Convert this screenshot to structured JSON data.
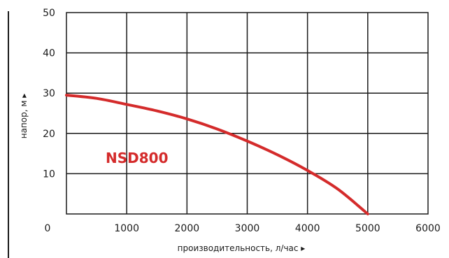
{
  "chart_data": {
    "type": "line",
    "xlabel": "производительность, л/час ▸",
    "ylabel": "напор, м ▸",
    "xlim": [
      0,
      6000
    ],
    "ylim": [
      0,
      50
    ],
    "x_ticks": [
      "0",
      "1000",
      "2000",
      "3000",
      "4000",
      "5000",
      "6000"
    ],
    "y_ticks": [
      "10",
      "20",
      "30",
      "40",
      "50"
    ],
    "x_tick_values": [
      0,
      1000,
      2000,
      3000,
      4000,
      5000,
      6000
    ],
    "y_tick_values": [
      10,
      20,
      30,
      40,
      50
    ],
    "grid": true,
    "series": [
      {
        "name": "NSD800",
        "color": "#d42b2b",
        "x": [
          0,
          500,
          1000,
          1500,
          2000,
          2500,
          3000,
          3500,
          4000,
          4500,
          5000
        ],
        "y": [
          29.5,
          28.7,
          27.2,
          25.6,
          23.6,
          21.1,
          18.1,
          14.7,
          10.8,
          6.2,
          0
        ]
      }
    ]
  }
}
